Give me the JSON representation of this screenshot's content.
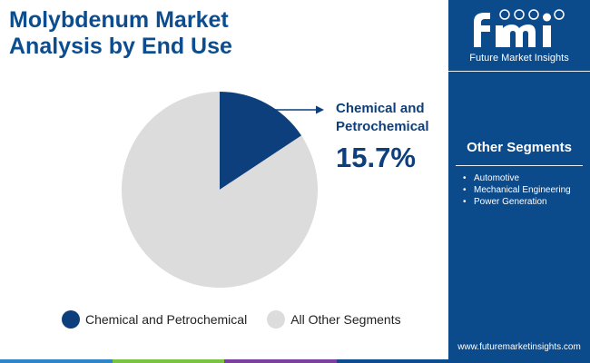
{
  "title": {
    "line1": "Molybdenum Market",
    "line2": "Analysis by End Use"
  },
  "chart_data": {
    "type": "pie",
    "title": "Molybdenum Market Analysis by End Use",
    "slices": [
      {
        "label": "Chemical and Petrochemical",
        "value": 15.7,
        "color": "#0c3f7c"
      },
      {
        "label": "All Other Segments",
        "value": 84.3,
        "color": "#dcdcdc"
      }
    ],
    "highlight": {
      "label_line1": "Chemical and",
      "label_line2": "Petrochemical",
      "value_text": "15.7%"
    },
    "legend_position": "bottom"
  },
  "legend": [
    {
      "label": "Chemical and Petrochemical",
      "color": "#0c3f7c"
    },
    {
      "label": "All Other Segments",
      "color": "#dcdcdc"
    }
  ],
  "sidebar": {
    "logo_text": "Future Market Insights",
    "segments_heading": "Other Segments",
    "segments": [
      "Automotive",
      "Mechanical Engineering",
      "Power Generation"
    ],
    "website": "www.futuremarketinsights.com"
  },
  "footer_colors": [
    "#2e86c8",
    "#7cc242",
    "#7b3fa0",
    "#0c4d8f"
  ]
}
